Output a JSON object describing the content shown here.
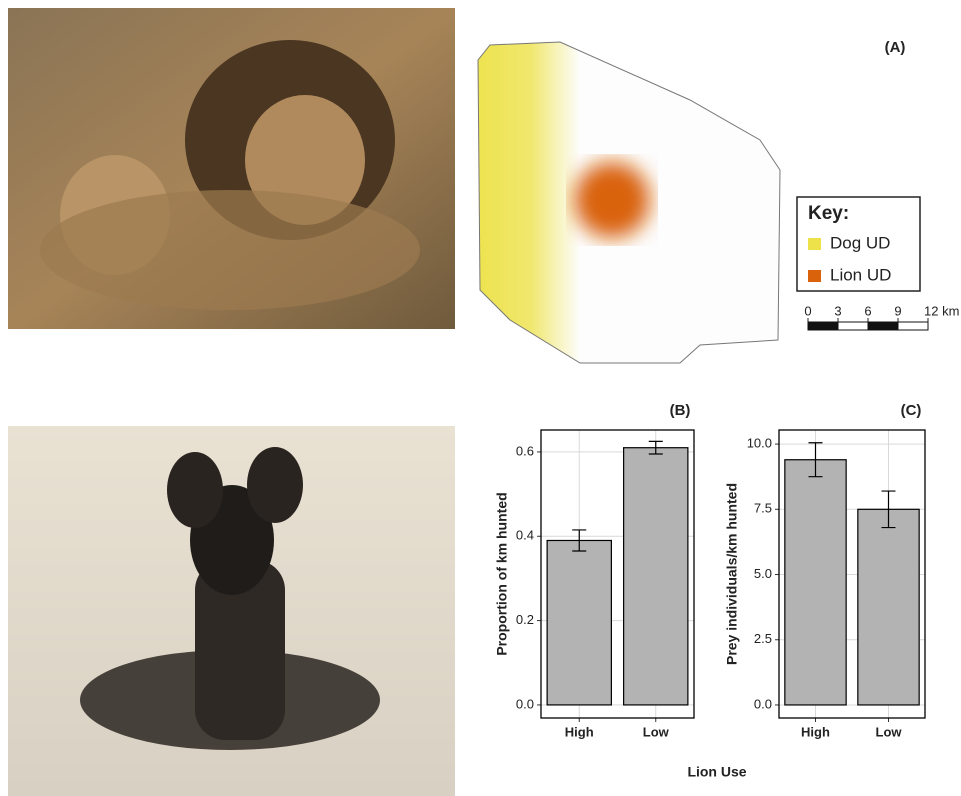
{
  "map": {
    "label": "(A)",
    "legend_title": "Key:",
    "legend": [
      {
        "name": "Dog UD",
        "color": "#ede24a"
      },
      {
        "name": "Lion UD",
        "color": "#d9620b"
      }
    ],
    "scale_xlim": [
      0,
      12
    ],
    "scale_ticks": [
      0,
      3,
      6,
      9,
      {
        "value": 12,
        "label": "12 km"
      }
    ]
  },
  "shared_xlabel": "Lion Use",
  "chart_data": [
    {
      "type": "bar",
      "title": "(B)",
      "ylabel": "Proportion of km hunted",
      "categories": [
        "High",
        "Low"
      ],
      "values": [
        0.39,
        0.61
      ],
      "errors": [
        0.025,
        0.015
      ],
      "color": "#b3b3b3",
      "ylim": [
        -0.031,
        0.652
      ],
      "yticks": [
        {
          "value": 0,
          "label": "0.0"
        },
        0.2,
        0.4,
        0.6
      ],
      "grid": true
    },
    {
      "type": "bar",
      "title": "(C)",
      "ylabel": "Prey individuals/km hunted",
      "categories": [
        "High",
        "Low"
      ],
      "values": [
        9.4,
        7.5
      ],
      "errors": [
        0.65,
        0.7
      ],
      "color": "#b3b3b3",
      "ylim": [
        -0.5,
        10.54
      ],
      "yticks": [
        {
          "value": 0,
          "label": "0.0"
        },
        {
          "value": 2.5,
          "label": "2.5"
        },
        {
          "value": 5,
          "label": "5.0"
        },
        7.5,
        {
          "value": 10,
          "label": "10.0"
        }
      ],
      "grid": true
    }
  ]
}
